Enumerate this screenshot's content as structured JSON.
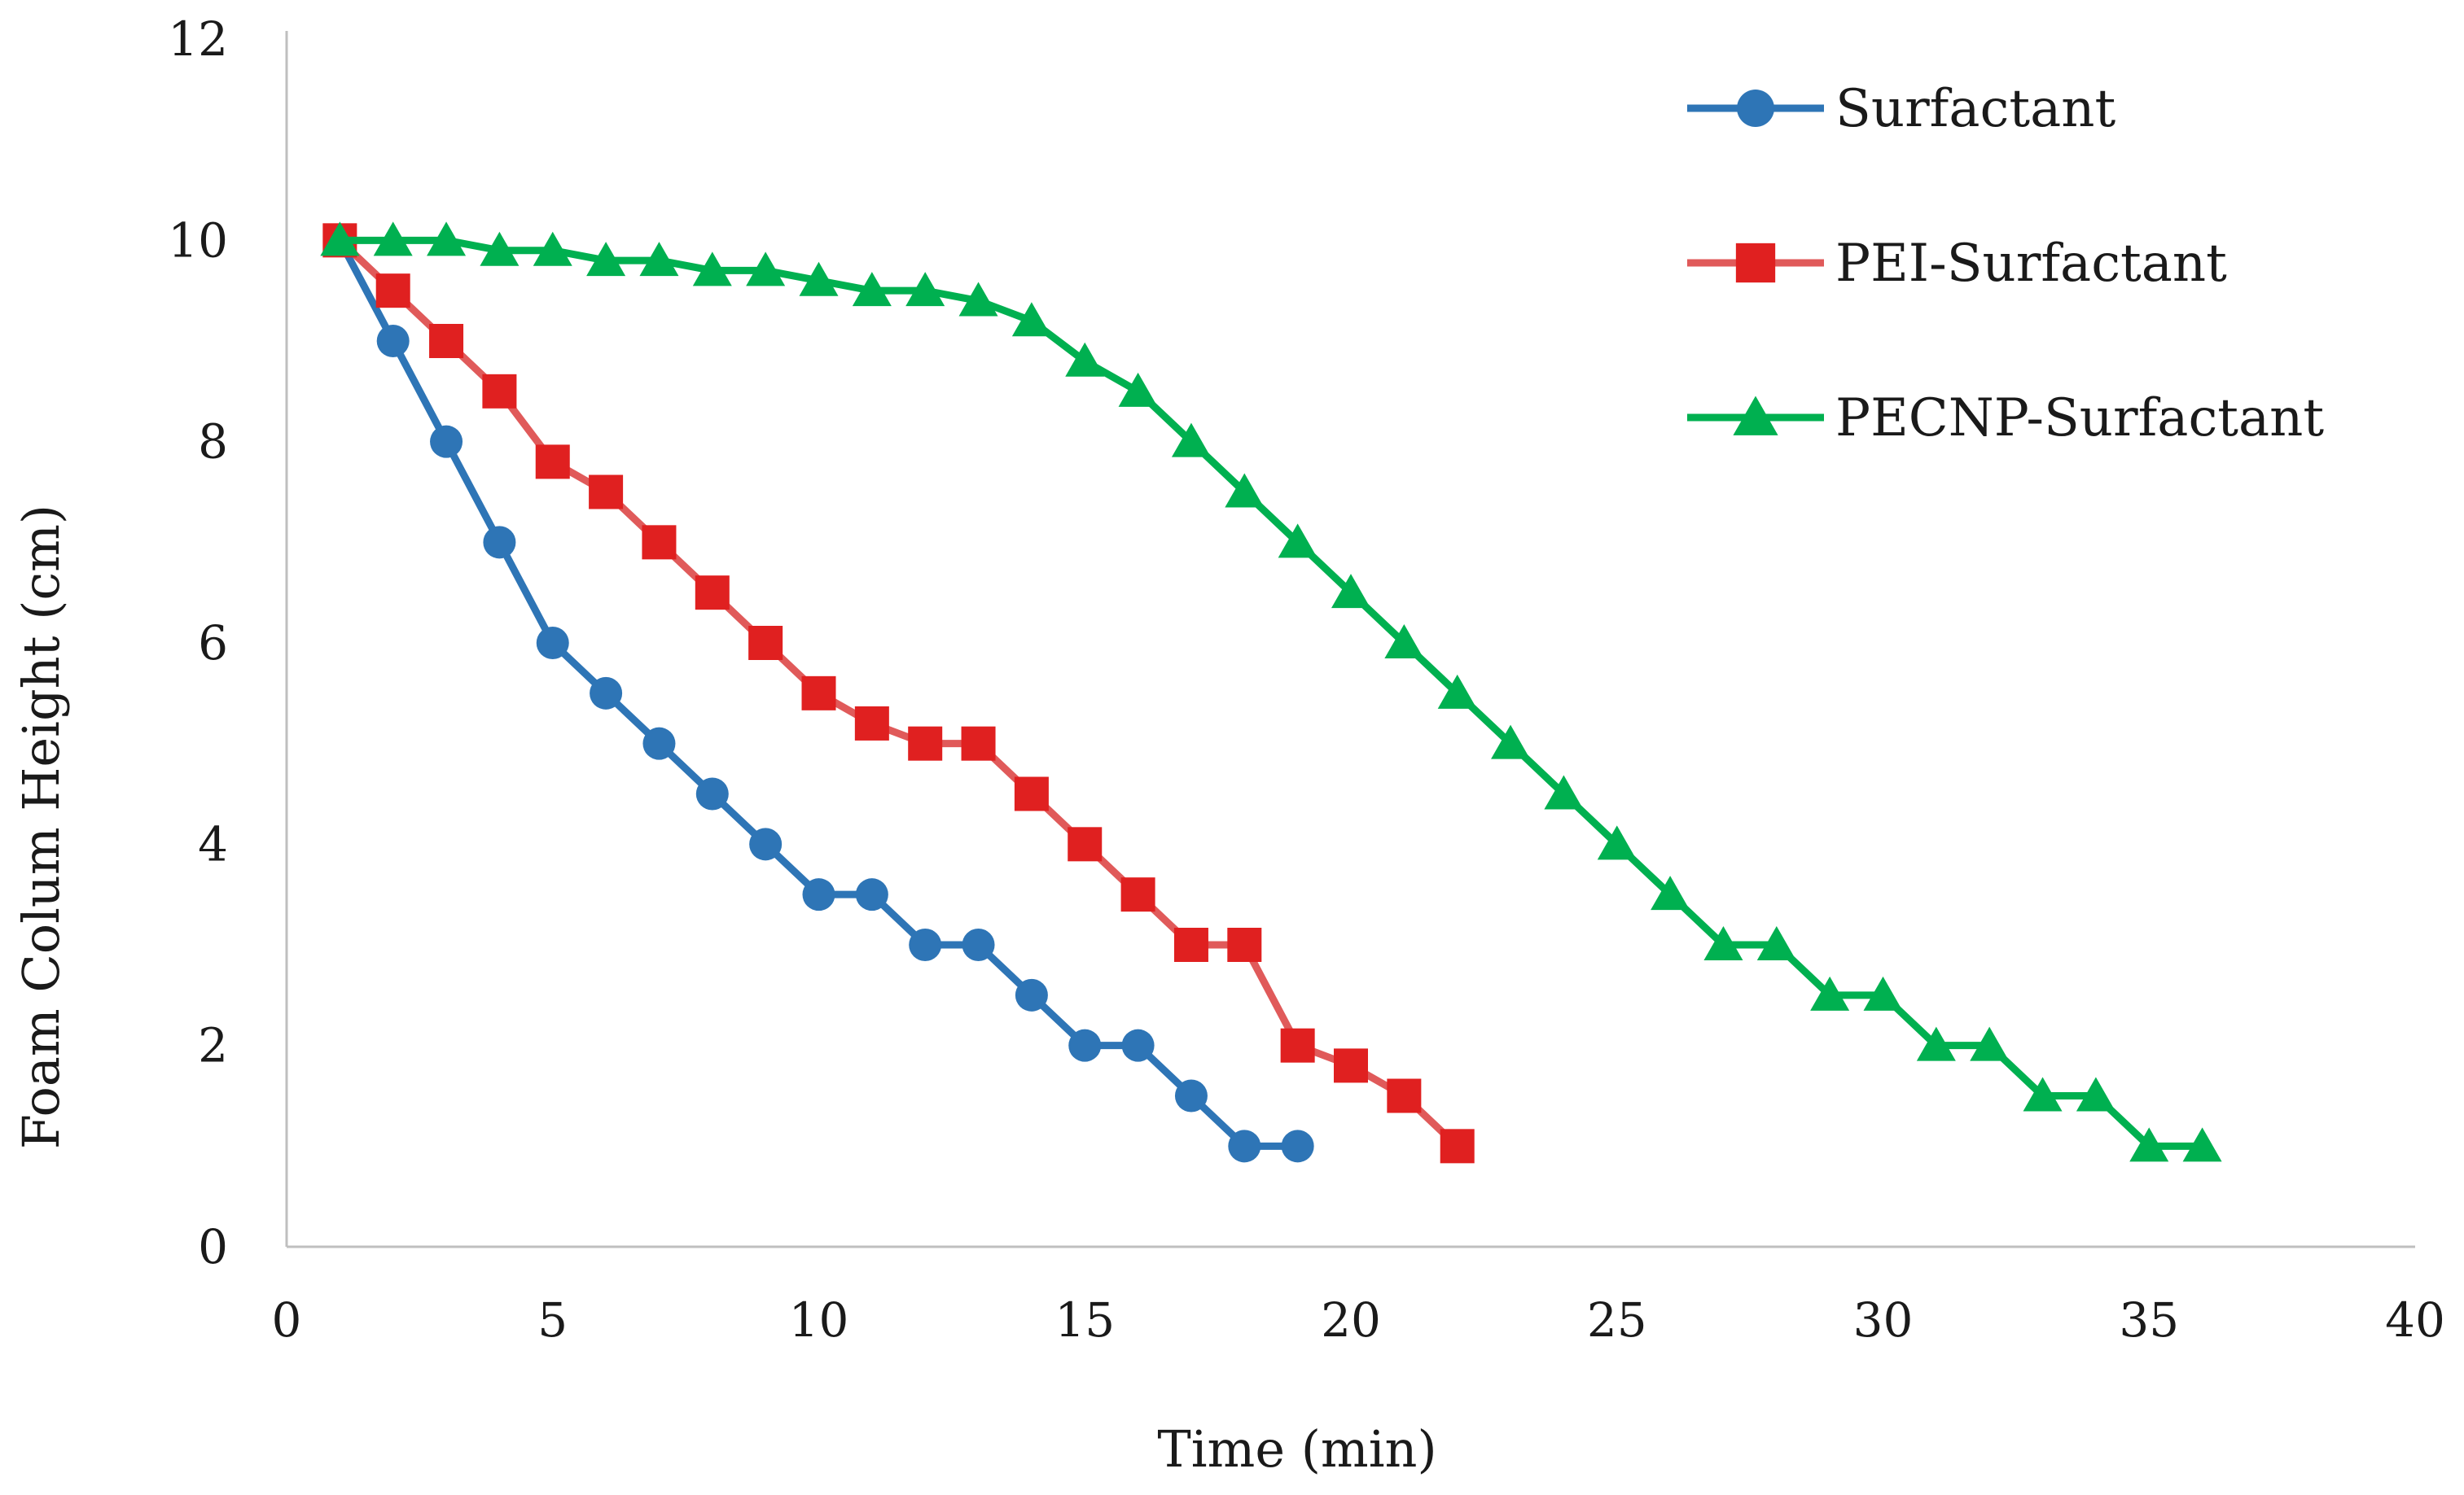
{
  "chart_data": {
    "type": "line",
    "title": "",
    "xlabel": "Time (min)",
    "ylabel": "Foam Colum Height (cm)",
    "xlim": [
      0,
      40
    ],
    "ylim": [
      0,
      12
    ],
    "xticks": [
      0,
      5,
      10,
      15,
      20,
      25,
      30,
      35,
      40
    ],
    "yticks": [
      0,
      2,
      4,
      6,
      8,
      10,
      12
    ],
    "grid": false,
    "legend": "top-right",
    "series": [
      {
        "name": "Surfactant",
        "color": "#2e75b6",
        "marker": "circle",
        "x": [
          1,
          2,
          3,
          4,
          5,
          6,
          7,
          8,
          9,
          10,
          11,
          12,
          13,
          14,
          15,
          16,
          17,
          18,
          19
        ],
        "y": [
          10,
          9,
          8,
          7,
          6,
          5.5,
          5,
          4.5,
          4,
          3.5,
          3.5,
          3,
          3,
          2.5,
          2,
          2,
          1.5,
          1,
          1
        ]
      },
      {
        "name": "PEI-Surfactant",
        "color": "#e02020",
        "line_color": "#e05a5a",
        "marker": "square",
        "x": [
          1,
          2,
          3,
          4,
          5,
          6,
          7,
          8,
          9,
          10,
          11,
          12,
          13,
          14,
          15,
          16,
          17,
          18,
          19,
          20,
          21,
          22
        ],
        "y": [
          10,
          9.5,
          9,
          8.5,
          7.8,
          7.5,
          7,
          6.5,
          6,
          5.5,
          5.2,
          5,
          5,
          4.5,
          4,
          3.5,
          3,
          3,
          2,
          1.8,
          1.5,
          1
        ]
      },
      {
        "name": "PECNP-Surfactant",
        "color": "#00b050",
        "marker": "triangle",
        "x": [
          1,
          2,
          3,
          4,
          5,
          6,
          7,
          8,
          9,
          10,
          11,
          12,
          13,
          14,
          15,
          16,
          17,
          18,
          19,
          20,
          21,
          22,
          23,
          24,
          25,
          26,
          27,
          28,
          29,
          30,
          31,
          32,
          33,
          34,
          35,
          36
        ],
        "y": [
          10,
          10,
          10,
          9.9,
          9.9,
          9.8,
          9.8,
          9.7,
          9.7,
          9.6,
          9.5,
          9.5,
          9.4,
          9.2,
          8.8,
          8.5,
          8,
          7.5,
          7,
          6.5,
          6,
          5.5,
          5,
          4.5,
          4,
          3.5,
          3,
          3,
          2.5,
          2.5,
          2,
          2,
          1.5,
          1.5,
          1,
          1
        ]
      }
    ]
  }
}
